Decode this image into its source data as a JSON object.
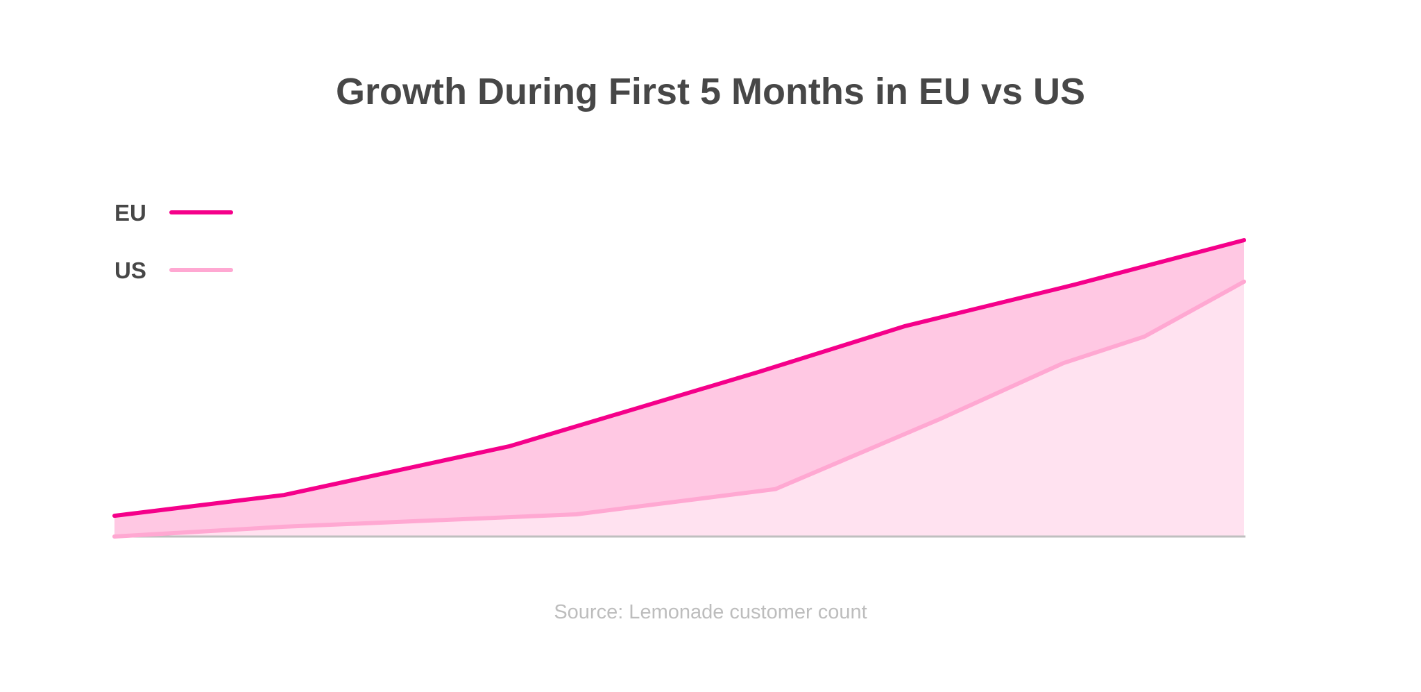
{
  "chart_data": {
    "type": "area",
    "title": "Growth During First 5 Months in EU vs US",
    "source": "Source: Lemonade customer count",
    "x": [
      0,
      0.15,
      0.35,
      0.409,
      0.57,
      0.585,
      0.7,
      0.73,
      0.84,
      0.85,
      0.912,
      1.0
    ],
    "series": [
      {
        "name": "EU",
        "color": "#f5008a",
        "fill": "#ffc8e3",
        "points": [
          [
            0,
            0.07
          ],
          [
            0.15,
            0.14
          ],
          [
            0.35,
            0.305
          ],
          [
            0.57,
            0.555
          ],
          [
            0.7,
            0.71
          ],
          [
            0.85,
            0.85
          ],
          [
            1.0,
            1.0
          ]
        ]
      },
      {
        "name": "US",
        "color": "#ffa8d2",
        "fill": "#ffe2f0",
        "points": [
          [
            0,
            0.0
          ],
          [
            0.15,
            0.033
          ],
          [
            0.409,
            0.075
          ],
          [
            0.585,
            0.16
          ],
          [
            0.73,
            0.395
          ],
          [
            0.84,
            0.585
          ],
          [
            0.912,
            0.675
          ],
          [
            1.0,
            0.86
          ]
        ]
      }
    ],
    "legend": "top-left",
    "grid": false
  }
}
